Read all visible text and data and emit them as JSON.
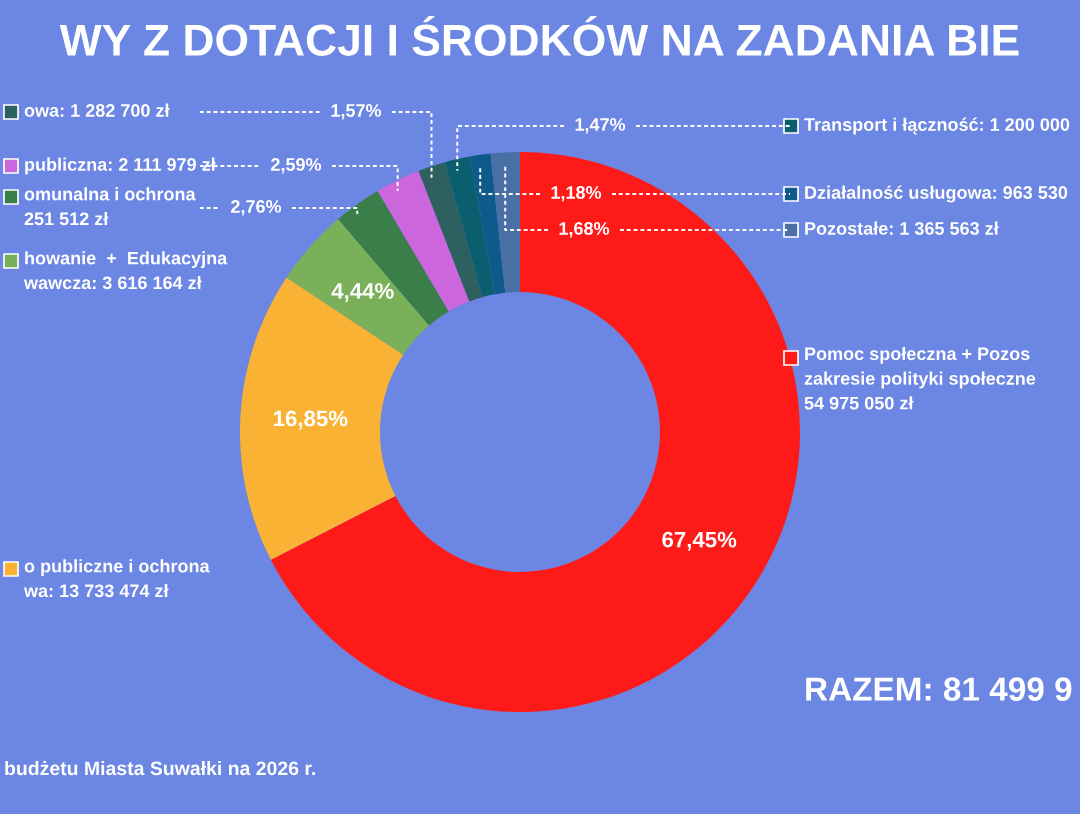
{
  "chart_data": {
    "type": "donut",
    "title": "WY Z DOTACJI I ŚRODKÓW NA ZADANIA BIE",
    "categories": [
      "Pomoc społeczna + Pozos\nzakresie polityki społeczne\n54 975 050 zł",
      "o publiczne i ochrona\nwa: 13 733 474 zł",
      "howanie  +  Edukacyjna\nwawcza: 3 616 164 zł",
      "omunalna i ochrona\n251 512 zł",
      "publiczna: 2 111 979 zł",
      "owa: 1 282 700 zł",
      "Transport i łączność: 1 200 000",
      "Działalność usługowa: 963 530",
      "Pozostałe: 1 365 563 zł"
    ],
    "values": [
      67.45,
      16.85,
      4.44,
      2.76,
      2.59,
      1.57,
      1.47,
      1.18,
      1.68
    ],
    "colors": [
      "#ff1a1a",
      "#f9b233",
      "#7ab05a",
      "#3a7f4a",
      "#cc66dd",
      "#2e6060",
      "#0b5e6e",
      "#0e5a8a",
      "#4a6fa5"
    ],
    "value_labels": [
      "67,45%",
      "16,85%",
      "4,44%",
      "2,76%",
      "2,59%",
      "1,57%",
      "1,47%",
      "1,18%",
      "1,68%"
    ],
    "legend": "left",
    "annotations": [
      "RAZEM: 81 499 9",
      "budżetu Miasta Suwałki na 2026 r."
    ]
  }
}
